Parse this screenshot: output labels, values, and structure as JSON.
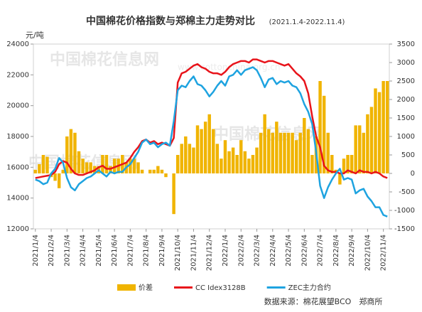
{
  "chart_data": {
    "type": "bar-line-combo",
    "title": "中国棉花价格指数与郑棉主力走势对比",
    "subtitle": "(2021.1.4-2022.11.4)",
    "y_label": "元/吨",
    "source": "数据来源：棉花展望BCO　郑商所",
    "watermark": "中国棉花信息网",
    "watermark_url": "www.cottonchina.org.cn",
    "categories": [
      "2021/1/4",
      null,
      null,
      null,
      "2021/2/4",
      null,
      null,
      null,
      "2021/3/4",
      null,
      null,
      null,
      "2021/4/4",
      null,
      null,
      null,
      "2021/5/4",
      null,
      null,
      null,
      "2021/6/4",
      null,
      null,
      null,
      "2021/7/4",
      null,
      null,
      null,
      "2021/8/4",
      null,
      null,
      null,
      "2021/9/4",
      null,
      null,
      null,
      "2021/10/4",
      null,
      null,
      null,
      "2021/11/4",
      null,
      null,
      null,
      "2021/12/4",
      null,
      null,
      null,
      "2022/1/4",
      null,
      null,
      null,
      "2022/2/4",
      null,
      null,
      null,
      "2022/3/4",
      null,
      null,
      null,
      "2022/4/4",
      null,
      null,
      null,
      "2022/5/4",
      null,
      null,
      null,
      "2022/6/4",
      null,
      null,
      null,
      "2022/7/4",
      null,
      null,
      null,
      "2022/8/4",
      null,
      null,
      null,
      "2022/9/4",
      null,
      null,
      null,
      "2022/10/4",
      null,
      null,
      null,
      "2022/11/4",
      null
    ],
    "series": [
      {
        "name": "价差",
        "kind": "bar",
        "axis": "y2",
        "color": "#f0b400",
        "values": [
          100,
          250,
          500,
          450,
          -100,
          -200,
          -400,
          100,
          1000,
          1200,
          1100,
          600,
          400,
          300,
          300,
          200,
          200,
          500,
          500,
          200,
          400,
          400,
          500,
          300,
          400,
          400,
          300,
          100,
          0,
          100,
          100,
          200,
          100,
          -100,
          0,
          -1100,
          500,
          800,
          1000,
          800,
          700,
          1300,
          1200,
          1400,
          1600,
          1200,
          800,
          400,
          900,
          600,
          700,
          500,
          900,
          600,
          400,
          500,
          700,
          1100,
          1600,
          1200,
          1100,
          1400,
          1100,
          1100,
          1100,
          1100,
          900,
          1100,
          1500,
          1200,
          500,
          1000,
          2500,
          2100,
          1100,
          500,
          100,
          -300,
          400,
          500,
          500,
          1300,
          1300,
          1100,
          1600,
          1800,
          2300,
          2200,
          2500,
          2500
        ]
      },
      {
        "name": "CC Idex3128B",
        "kind": "line",
        "color": "#e8141b",
        "values": [
          15300,
          15350,
          15400,
          15450,
          15500,
          15700,
          16200,
          16400,
          16300,
          15900,
          15600,
          15500,
          15500,
          15600,
          15700,
          15800,
          16000,
          16100,
          15900,
          15900,
          16000,
          16100,
          16200,
          16300,
          16600,
          17000,
          17300,
          17700,
          17800,
          17600,
          17700,
          17500,
          17600,
          17500,
          17400,
          17900,
          21500,
          22100,
          22200,
          22400,
          22600,
          22700,
          22500,
          22400,
          22200,
          22100,
          22100,
          22000,
          22200,
          22500,
          22700,
          22800,
          22900,
          22900,
          22800,
          23000,
          23000,
          22900,
          22800,
          22900,
          22900,
          22800,
          22700,
          22600,
          22700,
          22400,
          22100,
          21900,
          21600,
          20800,
          19300,
          18000,
          17300,
          16100,
          15800,
          15700,
          15700,
          15600,
          15600,
          15800,
          15700,
          15600,
          15800,
          15700,
          15700,
          15600,
          15700,
          15600,
          15400,
          15300
        ]
      },
      {
        "name": "ZEC主力合约",
        "kind": "line",
        "color": "#1ea3e0",
        "values": [
          15200,
          15100,
          14900,
          15000,
          15600,
          15900,
          16600,
          16300,
          15300,
          14700,
          14500,
          14900,
          15100,
          15300,
          15400,
          15600,
          15800,
          15600,
          15400,
          15700,
          15600,
          15700,
          15700,
          16000,
          16200,
          16600,
          17000,
          17600,
          17800,
          17500,
          17600,
          17300,
          17500,
          17600,
          17400,
          19000,
          21000,
          21300,
          21200,
          21600,
          21900,
          21400,
          21300,
          21000,
          20600,
          20900,
          21300,
          21600,
          21300,
          21900,
          22000,
          22300,
          22000,
          22300,
          22400,
          22500,
          22300,
          21800,
          21200,
          21700,
          21800,
          21400,
          21600,
          21500,
          21600,
          21300,
          21200,
          20800,
          20100,
          19600,
          18800,
          17000,
          14800,
          14000,
          14700,
          15200,
          15600,
          15900,
          15200,
          15300,
          15200,
          14300,
          14500,
          14600,
          14100,
          13800,
          13400,
          13400,
          12900,
          12800
        ]
      }
    ],
    "ylim": [
      12000,
      24000
    ],
    "yticks": [
      12000,
      14000,
      16000,
      18000,
      20000,
      22000,
      24000
    ],
    "y2lim": [
      -1500,
      3500
    ],
    "y2ticks": [
      -1500,
      -1000,
      -500,
      0,
      500,
      1000,
      1500,
      2000,
      2500,
      3000,
      3500
    ]
  }
}
